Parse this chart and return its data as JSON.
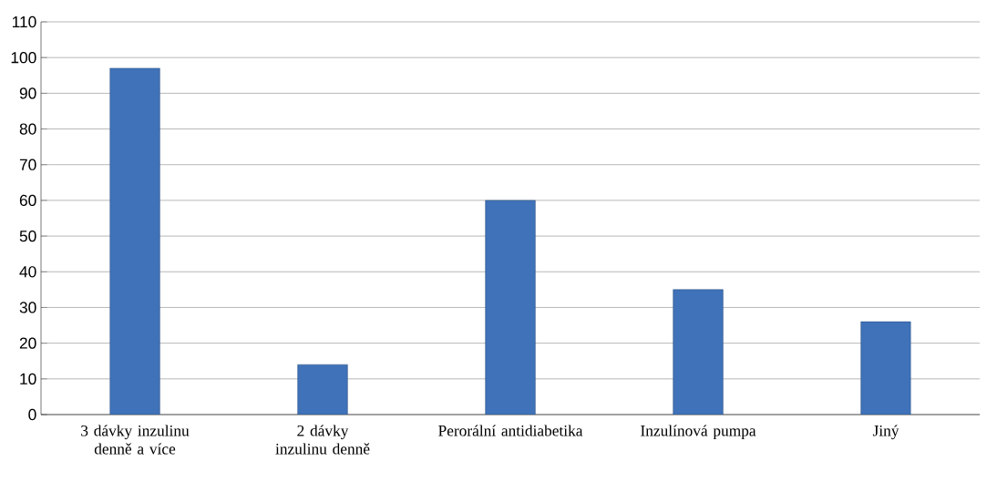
{
  "chart_data": {
    "type": "bar",
    "categories": [
      "3 dávky inzulinu denně a více",
      "2 dávky inzulinu denně",
      "Perorální antidiabetika",
      "Inzulínová pumpa",
      "Jiný"
    ],
    "values": [
      97,
      14,
      60,
      35,
      26
    ],
    "color": "#3f72b8",
    "ylim": [
      0,
      110
    ],
    "yticks": [
      0,
      10,
      20,
      30,
      40,
      50,
      60,
      70,
      80,
      90,
      100,
      110
    ],
    "grid": "y"
  }
}
